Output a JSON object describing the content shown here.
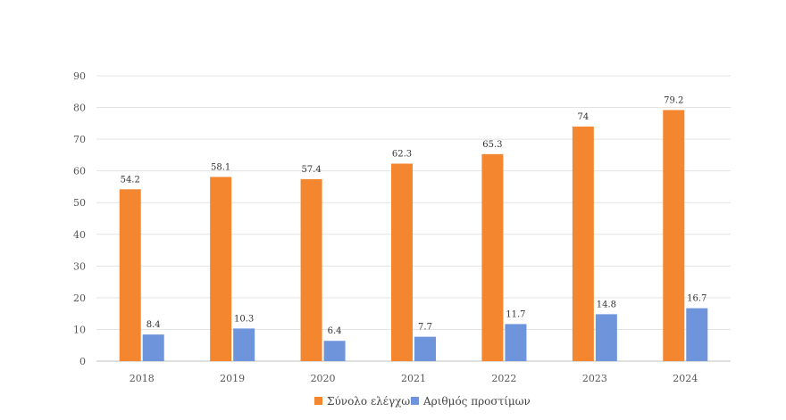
{
  "chart_data": {
    "type": "bar",
    "categories": [
      "2018",
      "2019",
      "2020",
      "2021",
      "2022",
      "2023",
      "2024"
    ],
    "series": [
      {
        "name": "Σύνολο ελέγχων",
        "color": "#F4862F",
        "values": [
          54.2,
          58.1,
          57.4,
          62.3,
          65.3,
          74,
          79.2
        ],
        "labels": [
          "54.2",
          "58.1",
          "57.4",
          "62.3",
          "65.3",
          "74",
          "79.2"
        ]
      },
      {
        "name": "Αριθμός προστίμων",
        "color": "#6E95DC",
        "values": [
          8.4,
          10.3,
          6.4,
          7.7,
          11.7,
          14.8,
          16.7
        ],
        "labels": [
          "8.4",
          "10.3",
          "6.4",
          "7.7",
          "11.7",
          "14.8",
          "16.7"
        ]
      }
    ],
    "ylim": [
      0,
      90
    ],
    "yticks": [
      "0",
      "10",
      "20",
      "30",
      "40",
      "50",
      "60",
      "70",
      "80",
      "90"
    ],
    "grid": true,
    "legend": "bottom-center"
  }
}
